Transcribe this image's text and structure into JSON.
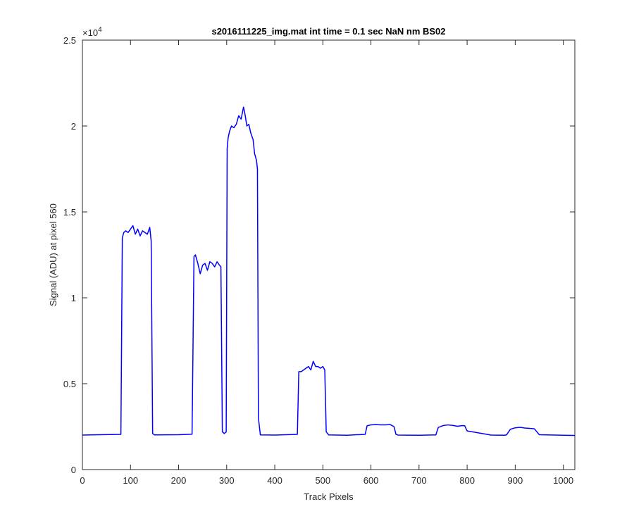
{
  "chart_data": {
    "type": "line",
    "title": "s2016111225_img.mat int time = 0.1 sec  NaN nm BS02",
    "xlabel": "Track Pixels",
    "ylabel": "Signal (ADU) at pixel 560",
    "xlim": [
      0,
      1024
    ],
    "ylim": [
      0,
      25000
    ],
    "x_ticks": [
      0,
      100,
      200,
      300,
      400,
      500,
      600,
      700,
      800,
      900,
      1000
    ],
    "x_tick_labels": [
      "0",
      "100",
      "200",
      "300",
      "400",
      "500",
      "600",
      "700",
      "800",
      "900",
      "1000"
    ],
    "y_ticks": [
      0,
      5000,
      10000,
      15000,
      20000,
      25000
    ],
    "y_tick_labels": [
      "0",
      "0.5",
      "1",
      "1.5",
      "2",
      "2.5"
    ],
    "y_exponent": {
      "base": "×10",
      "power": "4"
    },
    "grid": false,
    "legend": false,
    "series": [
      {
        "color": "#0000ff",
        "x": [
          0,
          80,
          83,
          86,
          90,
          95,
          100,
          105,
          110,
          115,
          120,
          125,
          130,
          135,
          140,
          143,
          146,
          150,
          200,
          228,
          232,
          235,
          240,
          245,
          250,
          255,
          260,
          265,
          270,
          275,
          280,
          285,
          288,
          291,
          295,
          299,
          301,
          303,
          306,
          310,
          315,
          320,
          325,
          330,
          335,
          338,
          342,
          346,
          350,
          355,
          358,
          362,
          364,
          366,
          370,
          400,
          447,
          450,
          455,
          460,
          465,
          470,
          475,
          480,
          485,
          490,
          495,
          500,
          504,
          507,
          512,
          550,
          588,
          592,
          600,
          610,
          620,
          630,
          640,
          648,
          652,
          656,
          700,
          735,
          740,
          750,
          760,
          770,
          780,
          790,
          795,
          800,
          850,
          877,
          882,
          890,
          900,
          910,
          920,
          930,
          940,
          945,
          950,
          1000,
          1024
        ],
        "y": [
          2010,
          2050,
          13500,
          13800,
          13900,
          13800,
          14000,
          14200,
          13700,
          14000,
          13600,
          13900,
          13800,
          13700,
          14100,
          13300,
          2100,
          2020,
          2030,
          2060,
          12400,
          12500,
          12000,
          11400,
          11900,
          12000,
          11600,
          12100,
          12000,
          11800,
          12100,
          11900,
          11800,
          2200,
          2100,
          2200,
          18700,
          19300,
          19700,
          20000,
          19900,
          20100,
          20600,
          20400,
          21100,
          20700,
          20000,
          20100,
          19600,
          19200,
          18400,
          18000,
          17500,
          3000,
          2020,
          2010,
          2050,
          5700,
          5700,
          5800,
          5900,
          6000,
          5800,
          6300,
          6000,
          6000,
          5900,
          6000,
          5800,
          2200,
          2020,
          2000,
          2050,
          2550,
          2600,
          2620,
          2600,
          2600,
          2620,
          2500,
          2050,
          2010,
          2000,
          2020,
          2450,
          2560,
          2600,
          2570,
          2520,
          2560,
          2550,
          2250,
          2010,
          2000,
          2020,
          2350,
          2430,
          2460,
          2420,
          2400,
          2370,
          2200,
          2030,
          2000,
          1990
        ]
      }
    ]
  }
}
